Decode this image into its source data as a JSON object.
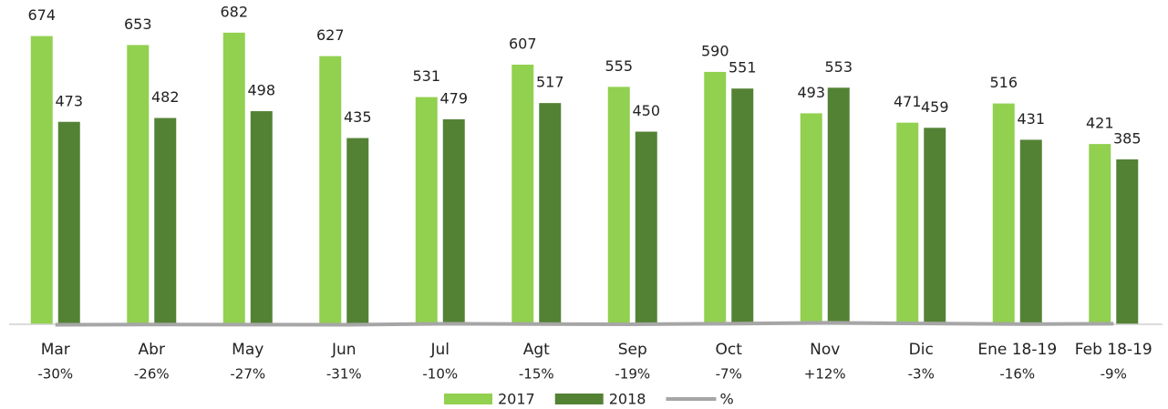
{
  "chart_data": {
    "type": "bar",
    "categories": [
      "Mar",
      "Abr",
      "May",
      "Jun",
      "Jul",
      "Agt",
      "Sep",
      "Oct",
      "Nov",
      "Dic",
      "Ene 18-19",
      "Feb 18-19"
    ],
    "series": [
      {
        "name": "2017",
        "color": "#92d050",
        "values": [
          674,
          653,
          682,
          627,
          531,
          607,
          555,
          590,
          493,
          471,
          516,
          421
        ]
      },
      {
        "name": "2018",
        "color": "#548235",
        "values": [
          473,
          482,
          498,
          435,
          479,
          517,
          450,
          551,
          553,
          459,
          431,
          385
        ]
      },
      {
        "name": "%",
        "color": "#a6a6a6",
        "type": "line",
        "axis": "y2",
        "values": [
          -30,
          -26,
          -27,
          -31,
          -10,
          -15,
          -19,
          -7,
          12,
          -3,
          -16,
          -9
        ],
        "value_labels": [
          "-30%",
          "-26%",
          "-27%",
          "-31%",
          "-10%",
          "-15%",
          "-19%",
          "-7%",
          "+12%",
          "-3%",
          "-16%",
          "-9%"
        ]
      }
    ],
    "ylim": [
      -10,
      750
    ],
    "y2lim": [
      -100,
      7000
    ],
    "legend": "bottom"
  }
}
